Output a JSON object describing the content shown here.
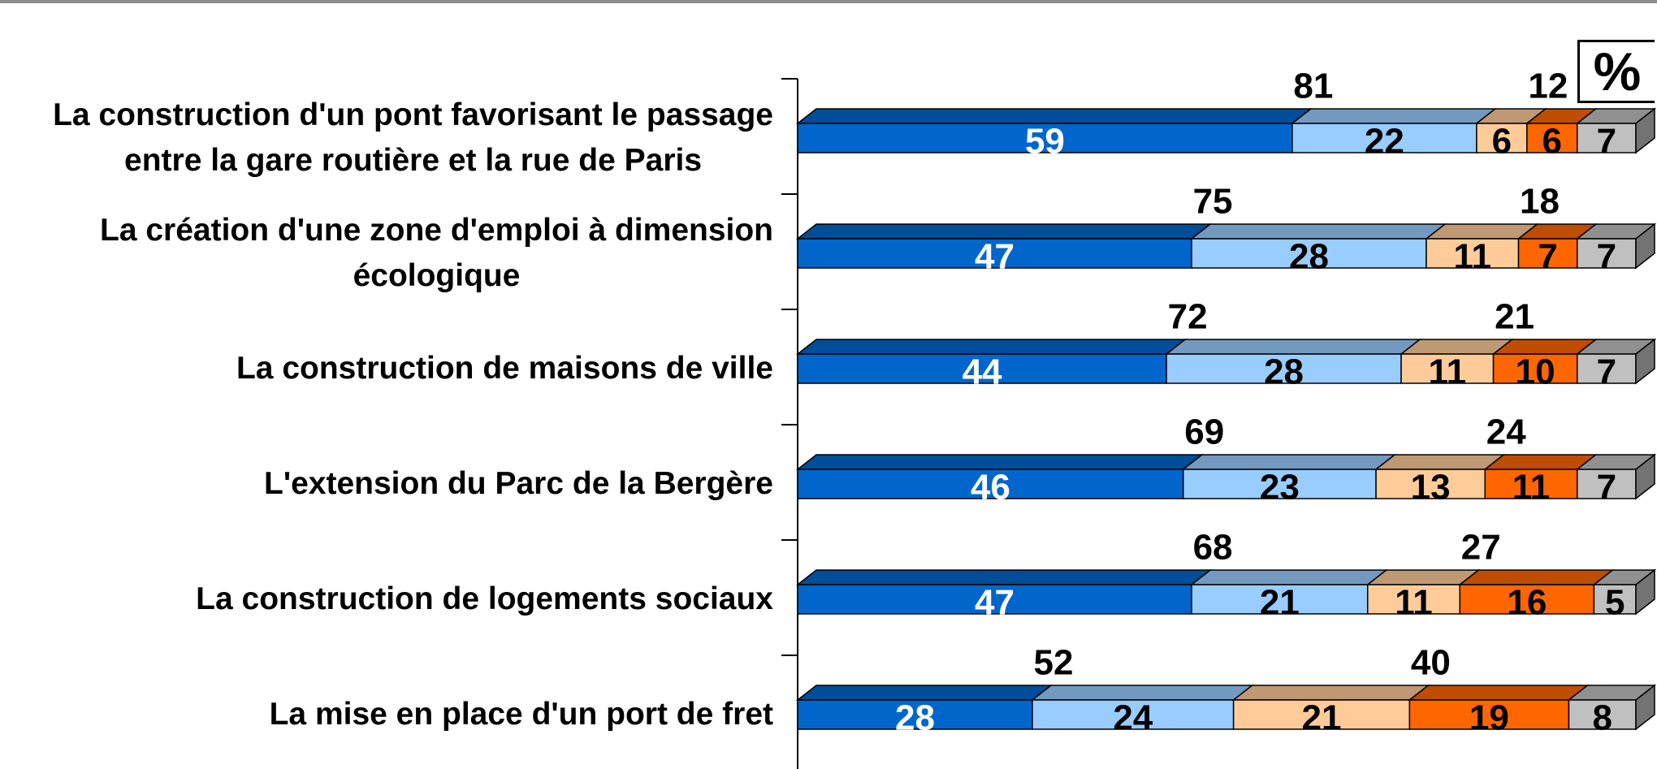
{
  "chart_data": {
    "type": "stacked-bar-3d",
    "unit_label": "%",
    "orientation": "horizontal",
    "categories": [
      "La construction d'un pont favorisant le passage\nentre la gare routière et la rue de Paris",
      "La création d'une zone d'emploi à dimension\nécologique",
      "La construction de maisons de ville",
      "L'extension du Parc de la Bergère",
      "La construction de logements sociaux",
      "La mise en place d'un port de fret"
    ],
    "series": [
      {
        "color": "#0066cc",
        "label_color": "#ffffff",
        "values": [
          59,
          47,
          44,
          46,
          47,
          28
        ]
      },
      {
        "color": "#99ccff",
        "label_color": "#000000",
        "values": [
          22,
          28,
          28,
          23,
          21,
          24
        ]
      },
      {
        "color": "#ffcc99",
        "label_color": "#000000",
        "values": [
          6,
          11,
          11,
          13,
          11,
          21
        ]
      },
      {
        "color": "#ff6600",
        "label_color": "#000000",
        "values": [
          6,
          7,
          10,
          11,
          16,
          19
        ]
      },
      {
        "color": "#c0c0c0",
        "label_color": "#000000",
        "values": [
          7,
          7,
          7,
          7,
          5,
          8
        ]
      }
    ],
    "totals_left": [
      81,
      75,
      72,
      69,
      68,
      52
    ],
    "totals_right": [
      12,
      18,
      21,
      24,
      27,
      40
    ],
    "xlim": [
      0,
      100
    ]
  }
}
